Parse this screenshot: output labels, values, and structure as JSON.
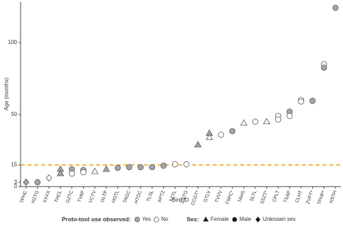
{
  "chart_data": {
    "type": "scatter",
    "y_label": "Age (months)",
    "x_label": "Bird ID",
    "categories": [
      "TPHC",
      "HZTG",
      "XXXX",
      "THCL",
      "GZTC",
      "TVAP",
      "VCTV",
      "GLTP",
      "HGTL",
      "TAGC",
      "HTGC",
      "TLSL",
      "APTZ",
      "SZTL",
      "ZGTG",
      "CCGT*",
      "GTLV",
      "TVVV",
      "TSPC*",
      "TAHS",
      "SLTL",
      "SSZT*",
      "CPLT",
      "TSAP",
      "CLHT",
      "ZVPT*",
      "TPHP*",
      "HSTH"
    ],
    "ylim": [
      0,
      128
    ],
    "yticks": [
      0,
      3,
      15,
      50,
      100
    ],
    "reference_line": {
      "value": 15,
      "color": "#e69f00"
    },
    "tool_legend": {
      "title": "Proto-tool use observed:",
      "items": [
        {
          "label": "Yes",
          "color": "#a6a6a6"
        },
        {
          "label": "No",
          "color": "#ffffff"
        }
      ]
    },
    "sex_legend": {
      "title": "Sex:",
      "items": [
        {
          "label": "Female",
          "shape": "triangle"
        },
        {
          "label": "Male",
          "shape": "circle"
        },
        {
          "label": "Unknown sex",
          "shape": "diamond"
        }
      ]
    },
    "points": [
      {
        "x": "TPHC",
        "y": 3,
        "tool": "Yes",
        "sex": "Unknown sex"
      },
      {
        "x": "HZTG",
        "y": 3,
        "tool": "Yes",
        "sex": "Male"
      },
      {
        "x": "XXXX",
        "y": 6,
        "tool": "No",
        "sex": "Unknown sex"
      },
      {
        "x": "THCL",
        "y": 12,
        "tool": "Yes",
        "sex": "Female"
      },
      {
        "x": "THCL",
        "y": 9,
        "tool": "Yes",
        "sex": "Female"
      },
      {
        "x": "GZTC",
        "y": 12,
        "tool": "Yes",
        "sex": "Male"
      },
      {
        "x": "GZTC",
        "y": 9,
        "tool": "No",
        "sex": "Male"
      },
      {
        "x": "TVAP",
        "y": 11.5,
        "tool": "Yes",
        "sex": "Male"
      },
      {
        "x": "TVAP",
        "y": 10,
        "tool": "No",
        "sex": "Male"
      },
      {
        "x": "VCTV",
        "y": 10.5,
        "tool": "No",
        "sex": "Female"
      },
      {
        "x": "GLTP",
        "y": 12,
        "tool": "Yes",
        "sex": "Female"
      },
      {
        "x": "HGTL",
        "y": 13,
        "tool": "Yes",
        "sex": "Male"
      },
      {
        "x": "TAGC",
        "y": 13.5,
        "tool": "Yes",
        "sex": "Male"
      },
      {
        "x": "HTGC",
        "y": 13.5,
        "tool": "Yes",
        "sex": "Male"
      },
      {
        "x": "TLSL",
        "y": 13.5,
        "tool": "Yes",
        "sex": "Male"
      },
      {
        "x": "APTZ",
        "y": 14.5,
        "tool": "Yes",
        "sex": "Male"
      },
      {
        "x": "SZTL",
        "y": 15.5,
        "tool": "No",
        "sex": "Male"
      },
      {
        "x": "ZGTG",
        "y": 15.5,
        "tool": "No",
        "sex": "Male"
      },
      {
        "x": "CCGT*",
        "y": 29,
        "tool": "Yes",
        "sex": "Female"
      },
      {
        "x": "GTLV",
        "y": 37,
        "tool": "Yes",
        "sex": "Female"
      },
      {
        "x": "GTLV",
        "y": 34,
        "tool": "No",
        "sex": "Female"
      },
      {
        "x": "TVVV",
        "y": 36,
        "tool": "No",
        "sex": "Male"
      },
      {
        "x": "TSPC*",
        "y": 38.5,
        "tool": "Yes",
        "sex": "Male"
      },
      {
        "x": "TAHS",
        "y": 44,
        "tool": "No",
        "sex": "Female"
      },
      {
        "x": "SLTL",
        "y": 45,
        "tool": "No",
        "sex": "Male"
      },
      {
        "x": "SSZT*",
        "y": 45,
        "tool": "No",
        "sex": "Female"
      },
      {
        "x": "CPLT",
        "y": 49,
        "tool": "No",
        "sex": "Male"
      },
      {
        "x": "CPLT",
        "y": 46.5,
        "tool": "No",
        "sex": "Male"
      },
      {
        "x": "TSAP",
        "y": 52,
        "tool": "Yes",
        "sex": "Male"
      },
      {
        "x": "TSAP",
        "y": 49,
        "tool": "No",
        "sex": "Male"
      },
      {
        "x": "CLHT",
        "y": 60,
        "tool": "No",
        "sex": "Male"
      },
      {
        "x": "CLHT",
        "y": 59,
        "tool": "No",
        "sex": "Male"
      },
      {
        "x": "ZVPT*",
        "y": 59.5,
        "tool": "Yes",
        "sex": "Male"
      },
      {
        "x": "TPHP*",
        "y": 85,
        "tool": "No",
        "sex": "Male"
      },
      {
        "x": "TPHP*",
        "y": 82.5,
        "tool": "Yes",
        "sex": "Male"
      },
      {
        "x": "HSTH",
        "y": 124,
        "tool": "Yes",
        "sex": "Male"
      }
    ]
  }
}
